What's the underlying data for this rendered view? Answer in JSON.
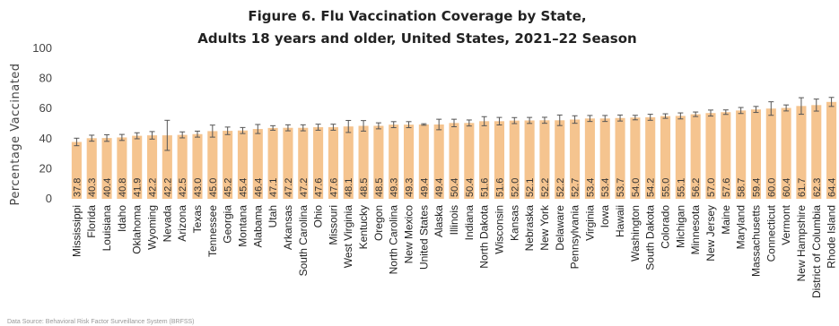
{
  "chart_data": {
    "type": "bar",
    "title_line1": "Figure 6. Flu Vaccination Coverage by State,",
    "title_line2": "Adults 18 years and older, United States, 2021–22 Season",
    "ylabel": "Percentage Vaccinated",
    "ylim": [
      0,
      100
    ],
    "yticks": [
      0,
      20,
      40,
      60,
      80,
      100
    ],
    "grid": false,
    "bar_color": "#f5c48f",
    "error_color": "#555555",
    "categories": [
      "Mississippi",
      "Florida",
      "Louisiana",
      "Idaho",
      "Oklahoma",
      "Wyoming",
      "Nevada",
      "Arizona",
      "Texas",
      "Tennessee",
      "Georgia",
      "Montana",
      "Alabama",
      "Utah",
      "Arkansas",
      "South Carolina",
      "Ohio",
      "Missouri",
      "West Virginia",
      "Kentucky",
      "Oregon",
      "North Carolina",
      "New Mexico",
      "United States",
      "Alaska",
      "Illinois",
      "Indiana",
      "North Dakota",
      "Wisconsin",
      "Kansas",
      "Nebraska",
      "New York",
      "Delaware",
      "Pennsylvania",
      "Virginia",
      "Iowa",
      "Hawaii",
      "Washington",
      "South Dakota",
      "Colorado",
      "Michigan",
      "Minnesota",
      "New Jersey",
      "Maine",
      "Maryland",
      "Massachusetts",
      "Connecticut",
      "Vermont",
      "New Hampshire",
      "District of Columbia",
      "Rhode Island"
    ],
    "values": [
      37.8,
      40.3,
      40.4,
      40.8,
      41.9,
      42.2,
      42.2,
      42.5,
      43.0,
      45.0,
      45.2,
      45.4,
      46.4,
      47.1,
      47.2,
      47.2,
      47.6,
      47.6,
      48.1,
      48.5,
      48.5,
      49.3,
      49.3,
      49.4,
      49.4,
      50.4,
      50.4,
      51.6,
      51.6,
      52.0,
      52.1,
      52.2,
      52.2,
      52.7,
      53.4,
      53.4,
      53.7,
      54.0,
      54.2,
      55.0,
      55.1,
      56.2,
      57.0,
      57.6,
      58.7,
      59.4,
      60.0,
      60.4,
      61.7,
      62.3,
      64.4
    ],
    "value_labels": [
      "37.8",
      "40.3",
      "40.4",
      "40.8",
      "41.9",
      "42.2",
      "42.2",
      "42.5",
      "43.0",
      "45.0",
      "45.2",
      "45.4",
      "46.4",
      "47.1",
      "47.2",
      "47.2",
      "47.6",
      "47.6",
      "48.1",
      "48.5",
      "48.5",
      "49.3",
      "49.3",
      "49.4",
      "49.4",
      "50.4",
      "50.4",
      "51.6",
      "51.6",
      "52.0",
      "52.1",
      "52.2",
      "52.2",
      "52.7",
      "53.4",
      "53.4",
      "53.7",
      "54.0",
      "54.2",
      "55.0",
      "55.1",
      "56.2",
      "57.0",
      "57.6",
      "58.7",
      "59.4",
      "60.0",
      "60.4",
      "61.7",
      "62.3",
      "64.4"
    ],
    "error_margins": [
      2.5,
      2.0,
      2.2,
      2.0,
      2.0,
      2.5,
      10.0,
      2.0,
      2.0,
      4.0,
      2.5,
      2.0,
      3.0,
      1.5,
      2.0,
      2.0,
      2.0,
      2.0,
      4.0,
      3.5,
      2.0,
      2.0,
      2.0,
      0.5,
      3.5,
      2.5,
      2.0,
      3.0,
      2.5,
      2.0,
      2.0,
      2.0,
      3.5,
      2.5,
      2.0,
      2.0,
      2.0,
      1.5,
      2.0,
      1.5,
      2.0,
      1.5,
      2.0,
      1.5,
      2.0,
      2.0,
      4.5,
      2.0,
      5.5,
      4.0,
      3.0
    ]
  },
  "footer": {
    "source_text": "Data Source: Behavioral Risk Factor Surveillance System (BRFSS)"
  }
}
